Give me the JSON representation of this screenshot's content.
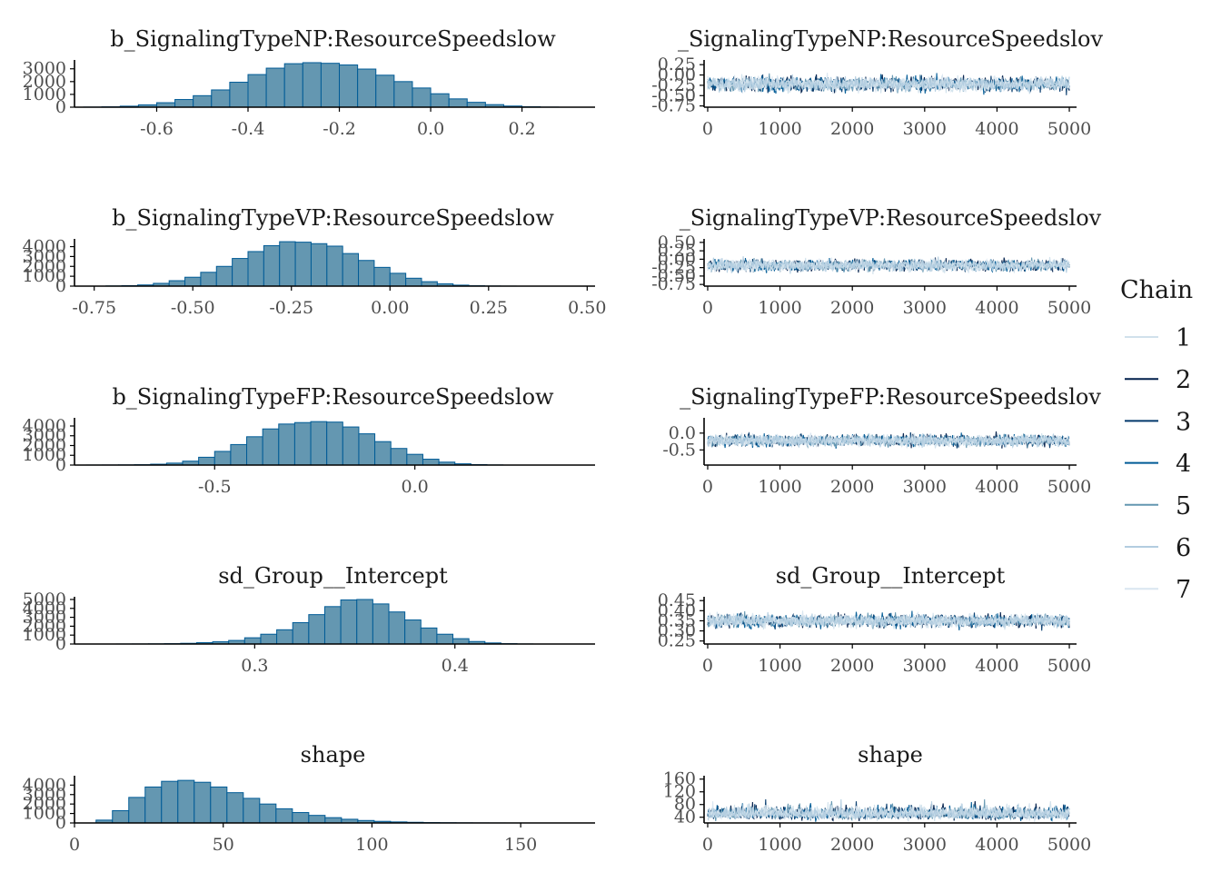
{
  "chart_data": {
    "type": "mcmc-diagnostics",
    "legend": {
      "title": "Chain",
      "placement": "right",
      "entries": [
        "1",
        "2",
        "3",
        "4",
        "5",
        "6",
        "7"
      ],
      "colors": [
        "#d1e1ec",
        "#011f4b",
        "#03396c",
        "#005b96",
        "#6497b1",
        "#b3cde0",
        "#d9e6f0"
      ]
    },
    "colors": {
      "hist_fill": "#6497b1",
      "hist_edge": "#005b96",
      "axis": "#000000"
    },
    "parameters": [
      {
        "title": "b_SignalingTypeNP:ResourceSpeedslow",
        "trace_title": "_SignalingTypeNP:ResourceSpeedslov",
        "hist": {
          "type": "bar",
          "xlim": [
            -0.78,
            0.36
          ],
          "xticks": [
            "-0.6",
            "-0.4",
            "-0.2",
            "0.0",
            "0.2"
          ],
          "xtick_values": [
            -0.6,
            -0.4,
            -0.2,
            0.0,
            0.2
          ],
          "ylim": [
            0,
            3550
          ],
          "yticks": [
            "0",
            "1000",
            "2000",
            "3000"
          ],
          "ytick_values": [
            0,
            1000,
            2000,
            3000
          ],
          "bins": [
            -0.74,
            -0.7,
            -0.66,
            -0.62,
            -0.58,
            -0.54,
            -0.5,
            -0.46,
            -0.42,
            -0.38,
            -0.34,
            -0.3,
            -0.26,
            -0.22,
            -0.18,
            -0.14,
            -0.1,
            -0.06,
            -0.02,
            0.02,
            0.06,
            0.1,
            0.14,
            0.18,
            0.22,
            0.26
          ],
          "counts": [
            10,
            30,
            80,
            180,
            350,
            600,
            900,
            1350,
            1950,
            2550,
            3050,
            3400,
            3480,
            3430,
            3300,
            2980,
            2500,
            2000,
            1500,
            1050,
            650,
            380,
            200,
            90,
            35,
            10
          ]
        },
        "trace": {
          "type": "line",
          "xlim": [
            -50,
            5100
          ],
          "xticks": [
            "0",
            "1000",
            "2000",
            "3000",
            "4000",
            "5000"
          ],
          "xtick_values": [
            0,
            1000,
            2000,
            3000,
            4000,
            5000
          ],
          "ylim": [
            -0.78,
            0.32
          ],
          "yticks": [
            "-0.75",
            "-0.50",
            "-0.25",
            "0.00",
            "0.25"
          ],
          "ytick_values": [
            -0.75,
            -0.5,
            -0.25,
            0.0,
            0.25
          ],
          "center": -0.22,
          "spread": 0.12,
          "skew": 0,
          "iterations": 5000
        }
      },
      {
        "title": "b_SignalingTypeVP:ResourceSpeedslow",
        "trace_title": "_SignalingTypeVP:ResourceSpeedslov",
        "hist": {
          "type": "bar",
          "xlim": [
            -0.8,
            0.52
          ],
          "xticks": [
            "-0.75",
            "-0.50",
            "-0.25",
            "0.00",
            "0.25",
            "0.50"
          ],
          "xtick_values": [
            -0.75,
            -0.5,
            -0.25,
            0.0,
            0.25,
            0.5
          ],
          "ylim": [
            0,
            4600
          ],
          "yticks": [
            "0",
            "1000",
            "2000",
            "3000",
            "4000"
          ],
          "ytick_values": [
            0,
            1000,
            2000,
            3000,
            4000
          ],
          "bins": [
            -0.7,
            -0.66,
            -0.62,
            -0.58,
            -0.54,
            -0.5,
            -0.46,
            -0.42,
            -0.38,
            -0.34,
            -0.3,
            -0.26,
            -0.22,
            -0.18,
            -0.14,
            -0.1,
            -0.06,
            -0.02,
            0.02,
            0.06,
            0.1,
            0.14,
            0.18,
            0.22,
            0.26,
            0.3
          ],
          "counts": [
            20,
            50,
            120,
            280,
            550,
            900,
            1400,
            2000,
            2800,
            3500,
            4100,
            4500,
            4450,
            4300,
            4050,
            3300,
            2600,
            1900,
            1300,
            800,
            450,
            230,
            100,
            40,
            15,
            5
          ]
        },
        "trace": {
          "type": "line",
          "xlim": [
            -50,
            5100
          ],
          "xticks": [
            "0",
            "1000",
            "2000",
            "3000",
            "4000",
            "5000"
          ],
          "xtick_values": [
            0,
            1000,
            2000,
            3000,
            4000,
            5000
          ],
          "ylim": [
            -0.8,
            0.55
          ],
          "yticks": [
            "-0.75",
            "-0.50",
            "-0.25",
            "0.00",
            "0.25",
            "0.50"
          ],
          "ytick_values": [
            -0.75,
            -0.5,
            -0.25,
            0.0,
            0.25,
            0.5
          ],
          "center": -0.18,
          "spread": 0.12,
          "skew": 0,
          "iterations": 5000
        }
      },
      {
        "title": "b_SignalingTypeFP:ResourceSpeedslow",
        "trace_title": "_SignalingTypeFP:ResourceSpeedslov",
        "hist": {
          "type": "bar",
          "xlim": [
            -0.85,
            0.45
          ],
          "xticks": [
            "-0.5",
            "0.0"
          ],
          "xtick_values": [
            -0.5,
            0.0
          ],
          "ylim": [
            0,
            4650
          ],
          "yticks": [
            "0",
            "1000",
            "2000",
            "3000",
            "4000"
          ],
          "ytick_values": [
            0,
            1000,
            2000,
            3000,
            4000
          ],
          "bins": [
            -0.8,
            -0.76,
            -0.72,
            -0.68,
            -0.64,
            -0.6,
            -0.56,
            -0.52,
            -0.48,
            -0.44,
            -0.4,
            -0.36,
            -0.32,
            -0.28,
            -0.24,
            -0.2,
            -0.16,
            -0.12,
            -0.08,
            -0.04,
            0.0,
            0.04,
            0.08,
            0.12,
            0.16,
            0.2
          ],
          "counts": [
            5,
            10,
            20,
            40,
            90,
            200,
            400,
            800,
            1400,
            2100,
            2900,
            3700,
            4200,
            4350,
            4450,
            4400,
            3900,
            3200,
            2400,
            1700,
            1100,
            600,
            300,
            130,
            50,
            15
          ]
        },
        "trace": {
          "type": "line",
          "xlim": [
            -50,
            5100
          ],
          "xticks": [
            "0",
            "1000",
            "2000",
            "3000",
            "4000",
            "5000"
          ],
          "xtick_values": [
            0,
            1000,
            2000,
            3000,
            4000,
            5000
          ],
          "ylim": [
            -0.95,
            0.4
          ],
          "yticks": [
            "-0.5",
            "0.0"
          ],
          "ytick_values": [
            -0.5,
            0.0
          ],
          "center": -0.22,
          "spread": 0.12,
          "skew": 0,
          "iterations": 5000
        }
      },
      {
        "title": "sd_Group__Intercept",
        "trace_title": "sd_Group__Intercept",
        "hist": {
          "type": "bar",
          "xlim": [
            0.21,
            0.47
          ],
          "xticks": [
            "0.3",
            "0.4"
          ],
          "xtick_values": [
            0.3,
            0.4
          ],
          "ylim": [
            0,
            5100
          ],
          "yticks": [
            "0",
            "1000",
            "2000",
            "3000",
            "4000",
            "5000"
          ],
          "ytick_values": [
            0,
            1000,
            2000,
            3000,
            4000,
            5000
          ],
          "bins": [
            0.235,
            0.243,
            0.251,
            0.259,
            0.267,
            0.275,
            0.283,
            0.291,
            0.299,
            0.307,
            0.315,
            0.323,
            0.331,
            0.339,
            0.347,
            0.355,
            0.363,
            0.371,
            0.379,
            0.387,
            0.395,
            0.403,
            0.411,
            0.419,
            0.427,
            0.435
          ],
          "counts": [
            5,
            10,
            20,
            40,
            80,
            150,
            250,
            400,
            700,
            1100,
            1600,
            2400,
            3300,
            4200,
            4950,
            5000,
            4500,
            3600,
            2700,
            1800,
            1100,
            600,
            280,
            120,
            40,
            10
          ]
        },
        "trace": {
          "type": "line",
          "xlim": [
            -50,
            5100
          ],
          "xticks": [
            "0",
            "1000",
            "2000",
            "3000",
            "4000",
            "5000"
          ],
          "xtick_values": [
            0,
            1000,
            2000,
            3000,
            4000,
            5000
          ],
          "ylim": [
            0.235,
            0.46
          ],
          "yticks": [
            "0.25",
            "0.30",
            "0.35",
            "0.40",
            "0.45"
          ],
          "ytick_values": [
            0.25,
            0.3,
            0.35,
            0.4,
            0.45
          ],
          "center": 0.35,
          "spread": 0.022,
          "skew": 0,
          "iterations": 5000
        }
      },
      {
        "title": "shape",
        "trace_title": "shape",
        "hist": {
          "type": "bar",
          "xlim": [
            0,
            175
          ],
          "xticks": [
            "0",
            "50",
            "100",
            "150"
          ],
          "xtick_values": [
            0,
            50,
            100,
            150
          ],
          "ylim": [
            0,
            4800
          ],
          "yticks": [
            "0",
            "1000",
            "2000",
            "3000",
            "4000"
          ],
          "ytick_values": [
            0,
            1000,
            2000,
            3000,
            4000
          ],
          "bins": [
            10,
            15.5,
            21,
            26.5,
            32,
            37.5,
            43,
            48.5,
            54,
            59.5,
            65,
            70.5,
            76,
            81.5,
            87,
            92.5,
            98,
            103.5,
            109,
            114.5,
            120,
            125.5,
            131,
            136.5,
            142,
            147.5
          ],
          "counts": [
            300,
            1300,
            2700,
            3800,
            4400,
            4500,
            4300,
            3800,
            3200,
            2600,
            2000,
            1500,
            1100,
            800,
            560,
            390,
            260,
            170,
            110,
            70,
            40,
            25,
            15,
            8,
            4,
            2
          ]
        },
        "trace": {
          "type": "line",
          "xlim": [
            -50,
            5100
          ],
          "xticks": [
            "0",
            "1000",
            "2000",
            "3000",
            "4000",
            "5000"
          ],
          "xtick_values": [
            0,
            1000,
            2000,
            3000,
            4000,
            5000
          ],
          "ylim": [
            22,
            165
          ],
          "yticks": [
            "40",
            "80",
            "120",
            "160"
          ],
          "ytick_values": [
            40,
            80,
            120,
            160
          ],
          "center": 45,
          "spread": 18,
          "skew": 1,
          "iterations": 5000
        }
      }
    ]
  }
}
